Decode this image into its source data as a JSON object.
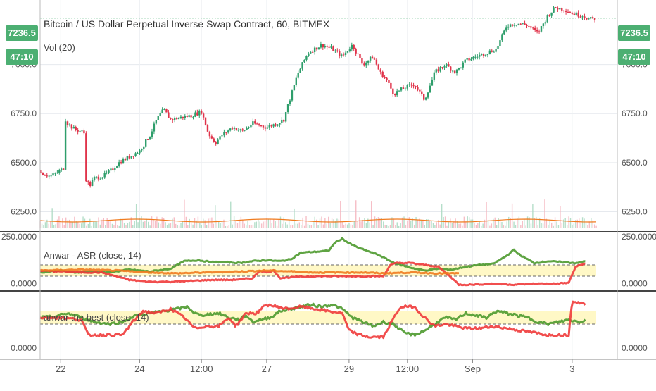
{
  "header": {
    "title": "Bitcoin / US Dollar Perpetual Inverse Swap Contract, 60, BITMEX",
    "volume_label": "Vol (20)",
    "last_price": "7236.5",
    "countdown": "47:10"
  },
  "colors": {
    "up": "#2e9e6b",
    "down": "#e0334a",
    "green_line": "#4e9a2f",
    "red_line": "#f03b3b",
    "orange_line": "#f07b1f",
    "band_fill": "#fff8c6",
    "accent": "#4caf72"
  },
  "chart_data": [
    {
      "type": "candlestick",
      "title": "Bitcoin / US Dollar Perpetual Inverse Swap Contract, 60, BITMEX",
      "y_ticks": [
        "7000.0",
        "6750.0",
        "6500.0",
        "6250.0"
      ],
      "ylim": [
        6180,
        7300
      ],
      "x_ticks": [
        "22",
        "24",
        "12:00",
        "27",
        "29",
        "12:00",
        "Sep",
        "3"
      ],
      "last_price": 7236.5,
      "close_path": [
        [
          0,
          6450
        ],
        [
          15,
          6430
        ],
        [
          30,
          6460
        ],
        [
          36,
          6480
        ],
        [
          37,
          6720
        ],
        [
          40,
          6700
        ],
        [
          50,
          6670
        ],
        [
          60,
          6660
        ],
        [
          64,
          6650
        ],
        [
          65,
          6430
        ],
        [
          72,
          6380
        ],
        [
          78,
          6420
        ],
        [
          90,
          6430
        ],
        [
          100,
          6450
        ],
        [
          115,
          6500
        ],
        [
          130,
          6530
        ],
        [
          145,
          6560
        ],
        [
          160,
          6640
        ],
        [
          170,
          6720
        ],
        [
          180,
          6770
        ],
        [
          190,
          6720
        ],
        [
          205,
          6730
        ],
        [
          220,
          6740
        ],
        [
          235,
          6760
        ],
        [
          245,
          6650
        ],
        [
          255,
          6600
        ],
        [
          265,
          6640
        ],
        [
          280,
          6680
        ],
        [
          295,
          6660
        ],
        [
          310,
          6700
        ],
        [
          330,
          6680
        ],
        [
          345,
          6700
        ],
        [
          355,
          6720
        ],
        [
          360,
          6780
        ],
        [
          375,
          6950
        ],
        [
          390,
          7060
        ],
        [
          410,
          7100
        ],
        [
          425,
          7080
        ],
        [
          440,
          7040
        ],
        [
          455,
          7100
        ],
        [
          470,
          7000
        ],
        [
          485,
          7040
        ],
        [
          495,
          6960
        ],
        [
          505,
          6920
        ],
        [
          515,
          6850
        ],
        [
          530,
          6880
        ],
        [
          545,
          6900
        ],
        [
          560,
          6820
        ],
        [
          575,
          6960
        ],
        [
          590,
          7000
        ],
        [
          605,
          6960
        ],
        [
          620,
          7020
        ],
        [
          635,
          7040
        ],
        [
          650,
          7060
        ],
        [
          665,
          7080
        ],
        [
          680,
          7200
        ],
        [
          695,
          7210
        ],
        [
          710,
          7200
        ],
        [
          725,
          7160
        ],
        [
          740,
          7250
        ],
        [
          750,
          7290
        ],
        [
          765,
          7280
        ],
        [
          775,
          7260
        ],
        [
          790,
          7250
        ],
        [
          800,
          7230
        ],
        [
          810,
          7236
        ]
      ],
      "volume_series": {
        "name": "Vol (20)",
        "level": 6195
      }
    },
    {
      "type": "line",
      "title": "Anwar - ASR (close, 14)",
      "y_ticks": [
        "250.0000",
        "0.0000"
      ],
      "ylim": [
        -20,
        250
      ],
      "bands": [
        40,
        100
      ],
      "series": [
        {
          "color": "#4e9a2f",
          "points": [
            [
              0,
              60
            ],
            [
              30,
              70
            ],
            [
              50,
              60
            ],
            [
              70,
              65
            ],
            [
              100,
              60
            ],
            [
              130,
              75
            ],
            [
              160,
              65
            ],
            [
              190,
              80
            ],
            [
              210,
              120
            ],
            [
              230,
              125
            ],
            [
              250,
              115
            ],
            [
              270,
              115
            ],
            [
              290,
              110
            ],
            [
              310,
              120
            ],
            [
              330,
              125
            ],
            [
              350,
              120
            ],
            [
              365,
              130
            ],
            [
              380,
              165
            ],
            [
              400,
              170
            ],
            [
              420,
              175
            ],
            [
              430,
              220
            ],
            [
              440,
              240
            ],
            [
              450,
              215
            ],
            [
              465,
              190
            ],
            [
              480,
              170
            ],
            [
              495,
              150
            ],
            [
              510,
              120
            ],
            [
              525,
              100
            ],
            [
              540,
              85
            ],
            [
              560,
              70
            ],
            [
              580,
              80
            ],
            [
              600,
              75
            ],
            [
              620,
              90
            ],
            [
              640,
              100
            ],
            [
              660,
              105
            ],
            [
              680,
              150
            ],
            [
              690,
              180
            ],
            [
              700,
              150
            ],
            [
              710,
              130
            ],
            [
              720,
              110
            ],
            [
              740,
              120
            ],
            [
              760,
              115
            ],
            [
              780,
              110
            ],
            [
              795,
              120
            ]
          ]
        },
        {
          "color": "#f03b3b",
          "points": [
            [
              0,
              70
            ],
            [
              30,
              65
            ],
            [
              60,
              60
            ],
            [
              90,
              60
            ],
            [
              110,
              40
            ],
            [
              130,
              20
            ],
            [
              160,
              10
            ],
            [
              190,
              10
            ],
            [
              220,
              15
            ],
            [
              250,
              20
            ],
            [
              280,
              20
            ],
            [
              310,
              30
            ],
            [
              320,
              70
            ],
            [
              330,
              60
            ],
            [
              340,
              70
            ],
            [
              350,
              30
            ],
            [
              370,
              35
            ],
            [
              400,
              40
            ],
            [
              430,
              40
            ],
            [
              460,
              40
            ],
            [
              480,
              40
            ],
            [
              500,
              40
            ],
            [
              510,
              100
            ],
            [
              520,
              110
            ],
            [
              540,
              110
            ],
            [
              560,
              100
            ],
            [
              580,
              90
            ],
            [
              600,
              30
            ],
            [
              610,
              -5
            ],
            [
              630,
              -5
            ],
            [
              660,
              0
            ],
            [
              690,
              -5
            ],
            [
              720,
              0
            ],
            [
              750,
              0
            ],
            [
              770,
              5
            ],
            [
              780,
              90
            ],
            [
              795,
              110
            ]
          ]
        },
        {
          "color": "#f07b1f",
          "points": [
            [
              0,
              70
            ],
            [
              60,
              75
            ],
            [
              110,
              70
            ],
            [
              160,
              60
            ],
            [
              200,
              55
            ],
            [
              240,
              60
            ],
            [
              290,
              65
            ],
            [
              330,
              70
            ],
            [
              370,
              65
            ],
            [
              400,
              60
            ],
            [
              440,
              60
            ],
            [
              470,
              60
            ],
            [
              500,
              55
            ],
            [
              540,
              60
            ],
            [
              580,
              55
            ],
            [
              610,
              55
            ]
          ]
        }
      ]
    },
    {
      "type": "line",
      "title": "anwar the best (close, 14)",
      "y_ticks": [
        "0.0000"
      ],
      "ylim": [
        -10,
        120
      ],
      "bands": [
        55,
        85
      ],
      "series": [
        {
          "color": "#4e9a2f",
          "points": [
            [
              0,
              70
            ],
            [
              20,
              72
            ],
            [
              40,
              80
            ],
            [
              60,
              70
            ],
            [
              80,
              60
            ],
            [
              100,
              55
            ],
            [
              120,
              60
            ],
            [
              140,
              75
            ],
            [
              160,
              80
            ],
            [
              180,
              85
            ],
            [
              200,
              90
            ],
            [
              215,
              95
            ],
            [
              225,
              80
            ],
            [
              235,
              75
            ],
            [
              245,
              78
            ],
            [
              260,
              80
            ],
            [
              275,
              70
            ],
            [
              290,
              65
            ],
            [
              300,
              75
            ],
            [
              310,
              60
            ],
            [
              320,
              65
            ],
            [
              335,
              70
            ],
            [
              350,
              85
            ],
            [
              365,
              90
            ],
            [
              380,
              95
            ],
            [
              395,
              100
            ],
            [
              410,
              95
            ],
            [
              425,
              100
            ],
            [
              440,
              90
            ],
            [
              455,
              70
            ],
            [
              470,
              60
            ],
            [
              485,
              50
            ],
            [
              500,
              60
            ],
            [
              515,
              55
            ],
            [
              530,
              35
            ],
            [
              545,
              30
            ],
            [
              560,
              40
            ],
            [
              575,
              55
            ],
            [
              590,
              70
            ],
            [
              605,
              65
            ],
            [
              620,
              80
            ],
            [
              635,
              75
            ],
            [
              650,
              70
            ],
            [
              665,
              85
            ],
            [
              680,
              80
            ],
            [
              695,
              75
            ],
            [
              710,
              70
            ],
            [
              725,
              60
            ],
            [
              740,
              55
            ],
            [
              755,
              60
            ],
            [
              770,
              65
            ],
            [
              785,
              60
            ],
            [
              795,
              65
            ]
          ]
        },
        {
          "color": "#f03b3b",
          "points": [
            [
              0,
              70
            ],
            [
              30,
              70
            ],
            [
              60,
              65
            ],
            [
              70,
              30
            ],
            [
              90,
              30
            ],
            [
              120,
              30
            ],
            [
              135,
              60
            ],
            [
              150,
              85
            ],
            [
              170,
              80
            ],
            [
              190,
              90
            ],
            [
              210,
              70
            ],
            [
              225,
              45
            ],
            [
              240,
              50
            ],
            [
              260,
              50
            ],
            [
              275,
              70
            ],
            [
              285,
              50
            ],
            [
              300,
              80
            ],
            [
              315,
              80
            ],
            [
              330,
              100
            ],
            [
              345,
              95
            ],
            [
              360,
              90
            ],
            [
              380,
              95
            ],
            [
              400,
              90
            ],
            [
              420,
              85
            ],
            [
              440,
              80
            ],
            [
              450,
              40
            ],
            [
              465,
              30
            ],
            [
              480,
              25
            ],
            [
              500,
              25
            ],
            [
              510,
              55
            ],
            [
              525,
              95
            ],
            [
              545,
              95
            ],
            [
              560,
              70
            ],
            [
              575,
              50
            ],
            [
              590,
              55
            ],
            [
              605,
              50
            ],
            [
              620,
              45
            ],
            [
              640,
              45
            ],
            [
              660,
              50
            ],
            [
              680,
              45
            ],
            [
              700,
              40
            ],
            [
              720,
              35
            ],
            [
              740,
              30
            ],
            [
              760,
              30
            ],
            [
              770,
              30
            ],
            [
              775,
              110
            ],
            [
              785,
              105
            ],
            [
              795,
              100
            ]
          ]
        }
      ]
    }
  ]
}
